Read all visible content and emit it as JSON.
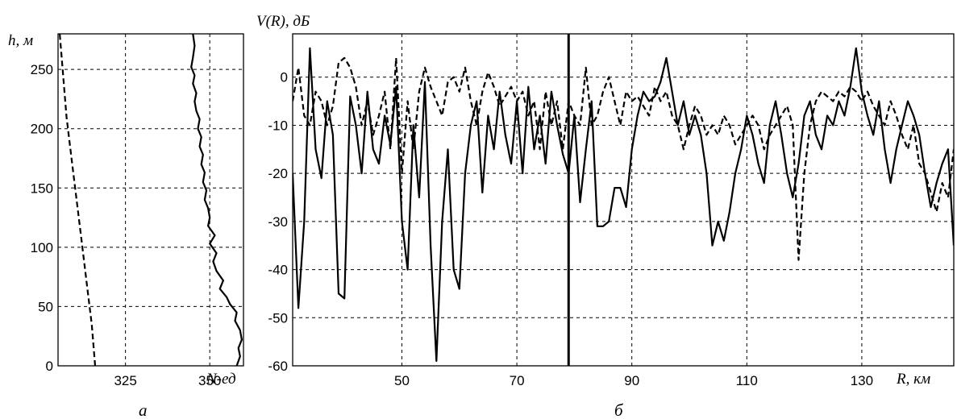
{
  "chart_data": [
    {
      "type": "line",
      "panel_label": "а",
      "ylabel": "h, м",
      "xlabel": "N-ед",
      "xlim": [
        305,
        360
      ],
      "ylim": [
        0,
        280
      ],
      "xticks": [
        325,
        350
      ],
      "yticks": [
        0,
        50,
        100,
        150,
        200,
        250
      ],
      "grid": true,
      "series": [
        {
          "style": "dashed",
          "x": [
            316,
            315,
            313.5,
            312,
            310.5,
            309,
            307.5,
            306.5,
            305.5
          ],
          "y": [
            0,
            35,
            70,
            105,
            140,
            175,
            210,
            245,
            280
          ]
        },
        {
          "style": "solid",
          "x": [
            358,
            359,
            358.5,
            359.5,
            359,
            357.5,
            358,
            356,
            355,
            353,
            354,
            352,
            351,
            352,
            350,
            351.5,
            349.5,
            350,
            349.5,
            348.5,
            349,
            348,
            348.5,
            347.5,
            348,
            347,
            347.5,
            346.5,
            347,
            346,
            345.5,
            346,
            345,
            345.5,
            344.5,
            345,
            345.5,
            345
          ],
          "y": [
            0,
            8,
            15,
            22,
            30,
            38,
            45,
            52,
            58,
            65,
            72,
            80,
            88,
            95,
            103,
            110,
            118,
            125,
            133,
            140,
            148,
            155,
            163,
            170,
            178,
            185,
            193,
            200,
            208,
            215,
            223,
            230,
            238,
            245,
            252,
            260,
            270,
            280
          ]
        }
      ]
    },
    {
      "type": "line",
      "panel_label": "б",
      "ylabel": "V(R), дБ",
      "xlabel": "R, км",
      "xlim": [
        31,
        146
      ],
      "ylim": [
        -60,
        9
      ],
      "xticks": [
        50,
        70,
        90,
        110,
        130
      ],
      "yticks": [
        0,
        -10,
        -20,
        -30,
        -40,
        -50,
        -60
      ],
      "grid": true,
      "marker_x": 79,
      "series": [
        {
          "style": "solid",
          "x": [
            31,
            32,
            33,
            34,
            35,
            36,
            37,
            38,
            39,
            40,
            41,
            42,
            43,
            44,
            45,
            46,
            47,
            48,
            49,
            50,
            51,
            52,
            53,
            54,
            55,
            56,
            57,
            58,
            59,
            60,
            61,
            62,
            63,
            64,
            65,
            66,
            67,
            68,
            69,
            70,
            71,
            72,
            73,
            74,
            75,
            76,
            77,
            78,
            79,
            80,
            81,
            82,
            83,
            84,
            85,
            86,
            87,
            88,
            89,
            90,
            91,
            92,
            93,
            94,
            95,
            96,
            97,
            98,
            99,
            100,
            101,
            102,
            103,
            104,
            105,
            106,
            107,
            108,
            109,
            110,
            111,
            112,
            113,
            114,
            115,
            116,
            117,
            118,
            119,
            120,
            121,
            122,
            123,
            124,
            125,
            126,
            127,
            128,
            129,
            130,
            131,
            132,
            133,
            134,
            135,
            136,
            137,
            138,
            139,
            140,
            141,
            142,
            143,
            144,
            145,
            146
          ],
          "y": [
            -20,
            -48,
            -30,
            6,
            -15,
            -21,
            -5,
            -12,
            -45,
            -46,
            -4,
            -10,
            -20,
            -3,
            -15,
            -18,
            -8,
            -14,
            -2,
            -30,
            -40,
            -10,
            -25,
            -1,
            -35,
            -59,
            -30,
            -15,
            -40,
            -44,
            -20,
            -10,
            -5,
            -24,
            -8,
            -15,
            -3,
            -12,
            -18,
            -5,
            -20,
            -2,
            -15,
            -8,
            -18,
            -3,
            -10,
            -16,
            -20,
            -8,
            -26,
            -15,
            -5,
            -31,
            -31,
            -30,
            -23,
            -23,
            -27,
            -15,
            -8,
            -3,
            -5,
            -4,
            -1,
            4,
            -3,
            -10,
            -5,
            -12,
            -8,
            -12,
            -20,
            -35,
            -30,
            -34,
            -28,
            -20,
            -15,
            -8,
            -12,
            -18,
            -22,
            -10,
            -5,
            -12,
            -20,
            -25,
            -18,
            -8,
            -5,
            -12,
            -15,
            -8,
            -10,
            -5,
            -8,
            -2,
            6,
            -3,
            -8,
            -12,
            -5,
            -15,
            -22,
            -15,
            -10,
            -5,
            -8,
            -12,
            -20,
            -27,
            -22,
            -18,
            -15,
            -35
          ]
        },
        {
          "style": "dashed",
          "x": [
            31,
            32,
            33,
            34,
            35,
            36,
            37,
            38,
            39,
            40,
            41,
            42,
            43,
            44,
            45,
            46,
            47,
            48,
            49,
            50,
            51,
            52,
            53,
            54,
            55,
            56,
            57,
            58,
            59,
            60,
            61,
            62,
            63,
            64,
            65,
            66,
            67,
            68,
            69,
            70,
            71,
            72,
            73,
            74,
            75,
            76,
            77,
            78,
            79,
            80,
            81,
            82,
            83,
            84,
            85,
            86,
            87,
            88,
            89,
            90,
            91,
            92,
            93,
            94,
            95,
            96,
            97,
            98,
            99,
            100,
            101,
            102,
            103,
            104,
            105,
            106,
            107,
            108,
            109,
            110,
            111,
            112,
            113,
            114,
            115,
            116,
            117,
            118,
            119,
            120,
            121,
            122,
            123,
            124,
            125,
            126,
            127,
            128,
            129,
            130,
            131,
            132,
            133,
            134,
            135,
            136,
            137,
            138,
            139,
            140,
            141,
            142,
            143,
            144,
            145,
            146
          ],
          "y": [
            -5,
            2,
            -8,
            -10,
            -3,
            -5,
            -10,
            -6,
            3,
            4,
            2,
            -2,
            -10,
            -5,
            -12,
            -8,
            -3,
            -15,
            4,
            -20,
            -5,
            -15,
            -3,
            2,
            -2,
            -5,
            -8,
            -1,
            0,
            -3,
            2,
            -5,
            -10,
            -3,
            1,
            -2,
            -6,
            -4,
            -2,
            -5,
            -3,
            -8,
            -5,
            -15,
            -3,
            -10,
            -5,
            -15,
            -5,
            -8,
            -10,
            2,
            -10,
            -8,
            -3,
            0,
            -5,
            -10,
            -3,
            -5,
            -4,
            -6,
            -8,
            -2,
            -5,
            -3,
            -8,
            -10,
            -15,
            -10,
            -6,
            -8,
            -12,
            -10,
            -12,
            -8,
            -10,
            -14,
            -12,
            -10,
            -8,
            -10,
            -15,
            -12,
            -10,
            -8,
            -6,
            -10,
            -38,
            -20,
            -10,
            -5,
            -3,
            -4,
            -5,
            -3,
            -4,
            -2,
            -3,
            -5,
            -3,
            -6,
            -8,
            -10,
            -5,
            -8,
            -12,
            -15,
            -10,
            -18,
            -20,
            -24,
            -28,
            -22,
            -25,
            -15
          ]
        }
      ]
    }
  ]
}
